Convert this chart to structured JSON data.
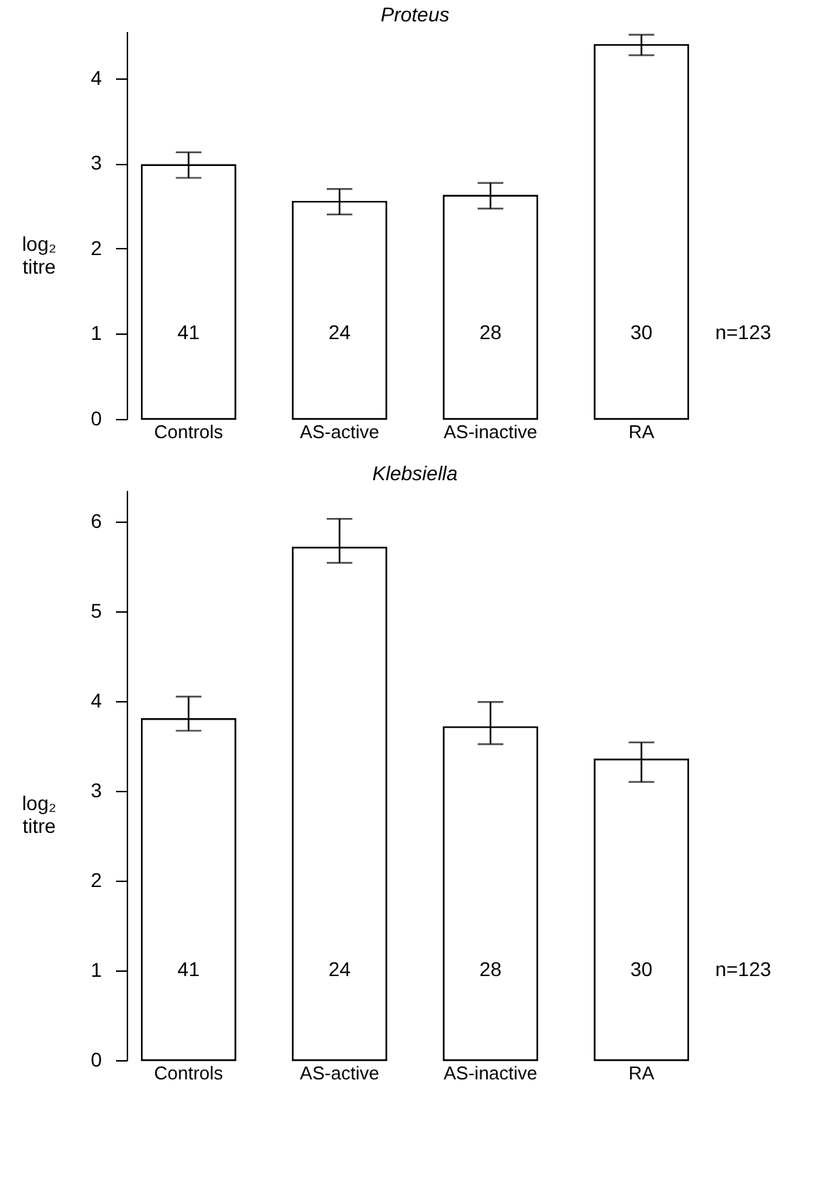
{
  "chart_data": [
    {
      "type": "bar",
      "title": "Proteus",
      "ylabel": "log₂ titre",
      "categories": [
        "Controls",
        "AS-active",
        "AS-inactive",
        "RA"
      ],
      "values": [
        2.98,
        2.55,
        2.62,
        4.39
      ],
      "color": "#ffffff",
      "errors": [
        [
          2.83,
          3.13
        ],
        [
          2.4,
          2.7
        ],
        [
          2.47,
          2.77
        ],
        [
          4.27,
          4.51
        ]
      ],
      "ylim": [
        0,
        4.55
      ],
      "yticks": [
        0,
        1,
        2,
        3,
        4
      ],
      "grid": false,
      "annotations": [
        "41",
        "24",
        "28",
        "30",
        "n=123"
      ]
    },
    {
      "type": "bar",
      "title": "Klebsiella",
      "ylabel": "log₂ titre",
      "categories": [
        "Controls",
        "AS-active",
        "AS-inactive",
        "RA"
      ],
      "values": [
        3.8,
        5.71,
        3.71,
        3.35
      ],
      "color": "#ffffff",
      "errors": [
        [
          3.67,
          4.05
        ],
        [
          5.54,
          6.03
        ],
        [
          3.52,
          3.99
        ],
        [
          3.1,
          3.54
        ]
      ],
      "ylim": [
        0,
        6.35
      ],
      "yticks": [
        0,
        1,
        2,
        3,
        4,
        5,
        6
      ],
      "grid": false,
      "annotations": [
        "41",
        "24",
        "28",
        "30",
        "n=123"
      ]
    }
  ]
}
